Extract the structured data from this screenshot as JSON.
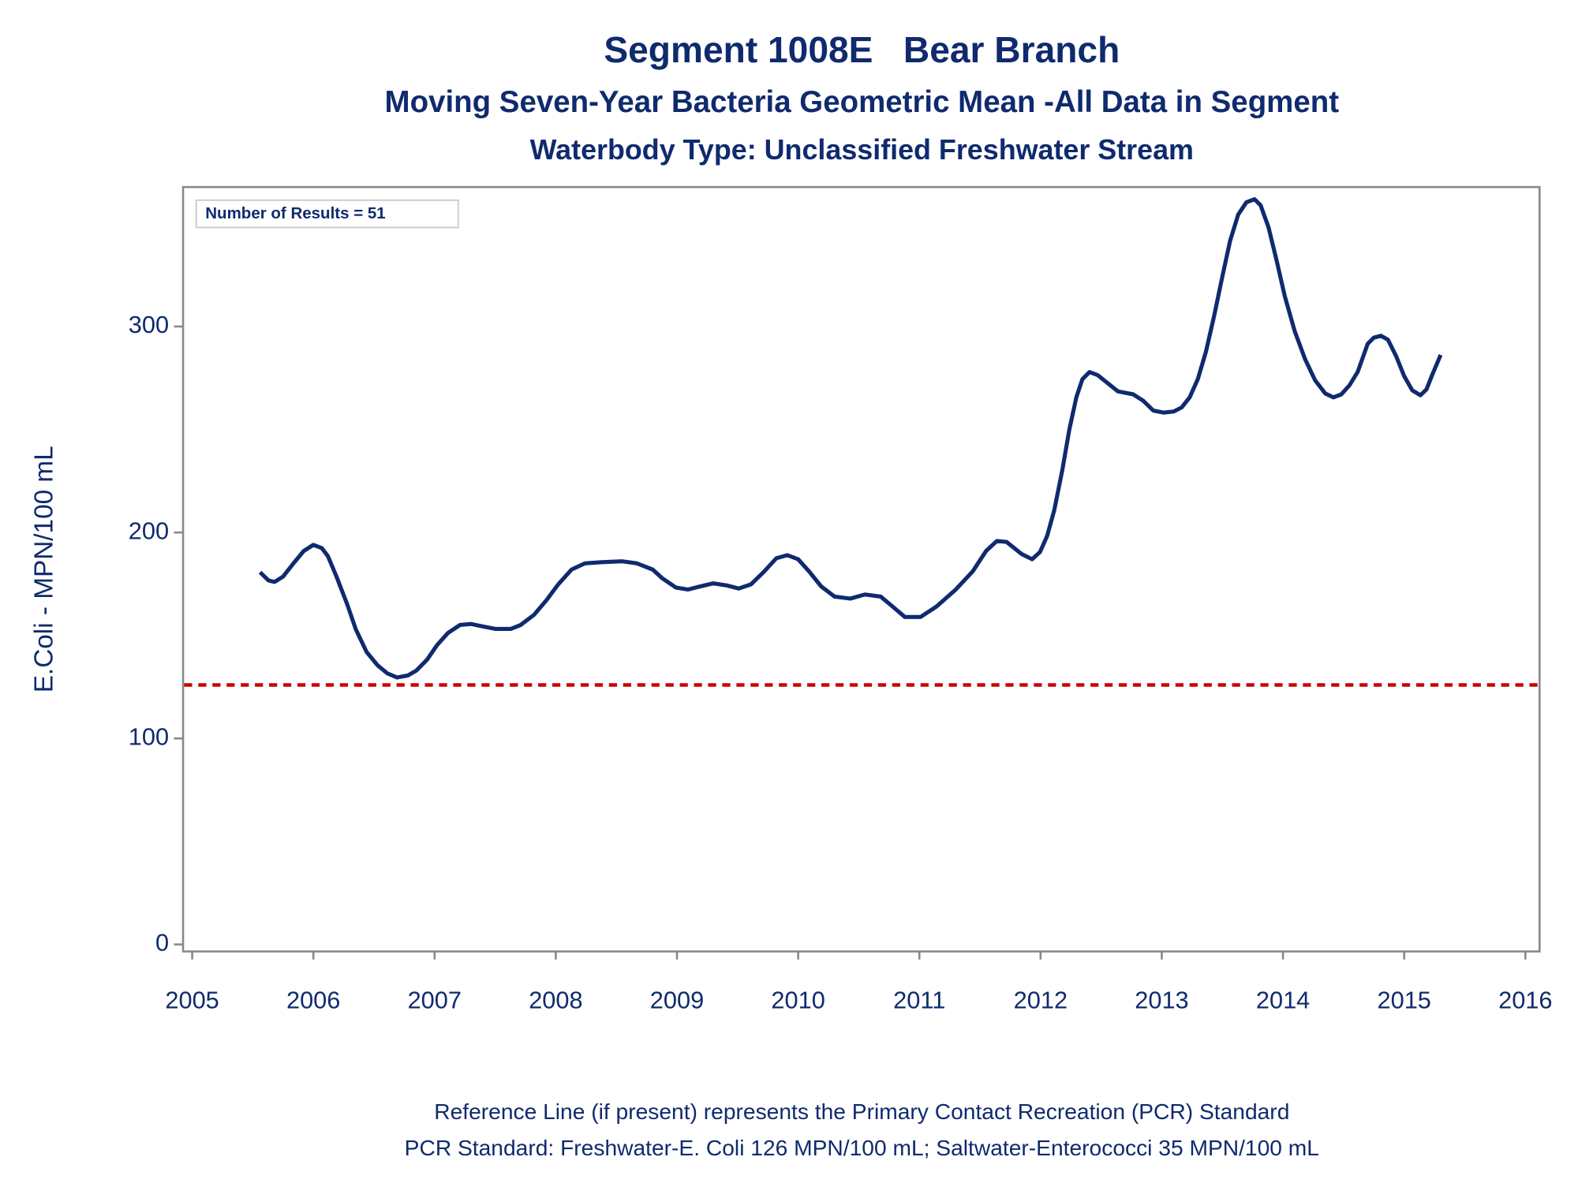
{
  "chart_data": {
    "type": "line",
    "title": "Segment 1008E   Bear Branch",
    "subtitle": "Moving Seven-Year Bacteria Geometric Mean -All Data in Segment",
    "subtitle2": "Waterbody Type: Unclassified Freshwater Stream",
    "ylabel": "E.Coli - MPN/100 mL",
    "annotation": "Number of Results = 51",
    "footnotes": [
      "Reference Line (if present) represents the Primary Contact Recreation (PCR) Standard",
      "PCR Standard: Freshwater-E. Coli 126 MPN/100 mL; Saltwater-Enterococci 35 MPN/100 mL"
    ],
    "color": "#0f2a6e",
    "reference_line": {
      "value": 126,
      "color": "#cc0000"
    },
    "x": [
      2005.56,
      2005.63,
      2005.68,
      2005.75,
      2005.83,
      2005.92,
      2006.0,
      2006.07,
      2006.12,
      2006.19,
      2006.28,
      2006.35,
      2006.44,
      2006.53,
      2006.61,
      2006.69,
      2006.78,
      2006.85,
      2006.94,
      2007.02,
      2007.11,
      2007.21,
      2007.3,
      2007.38,
      2007.5,
      2007.63,
      2007.71,
      2007.82,
      2007.92,
      2008.02,
      2008.13,
      2008.24,
      2008.38,
      2008.55,
      2008.67,
      2008.8,
      2008.88,
      2008.99,
      2009.09,
      2009.19,
      2009.3,
      2009.41,
      2009.51,
      2009.61,
      2009.72,
      2009.82,
      2009.91,
      2010.0,
      2010.09,
      2010.19,
      2010.3,
      2010.43,
      2010.55,
      2010.68,
      2010.78,
      2010.88,
      2011.01,
      2011.14,
      2011.3,
      2011.44,
      2011.55,
      2011.64,
      2011.72,
      2011.845,
      2011.93,
      2011.995,
      2012.054,
      2012.112,
      2012.179,
      2012.237,
      2012.295,
      2012.345,
      2012.404,
      2012.471,
      2012.554,
      2012.638,
      2012.763,
      2012.846,
      2012.93,
      2013.013,
      2013.097,
      2013.164,
      2013.23,
      2013.297,
      2013.364,
      2013.431,
      2013.497,
      2013.564,
      2013.631,
      2013.698,
      2013.765,
      2013.815,
      2013.881,
      2013.948,
      2014.015,
      2014.098,
      2014.182,
      2014.265,
      2014.349,
      2014.416,
      2014.482,
      2014.549,
      2014.616,
      2014.699,
      2014.75,
      2014.808,
      2014.866,
      2014.933,
      2015.0,
      2015.067,
      2015.134,
      2015.184,
      2015.234,
      2015.301
    ],
    "values": [
      180.7,
      176.7,
      176.0,
      178.6,
      184.6,
      191.0,
      194.0,
      192.4,
      188.5,
      178.7,
      165.0,
      153.0,
      141.9,
      135.5,
      131.6,
      129.6,
      130.6,
      133.0,
      138.4,
      145.3,
      151.2,
      155.1,
      155.6,
      154.6,
      153.2,
      153.2,
      155.1,
      160.0,
      166.9,
      174.8,
      182.0,
      185.0,
      185.6,
      186.0,
      185.0,
      182.0,
      177.7,
      173.3,
      172.3,
      173.8,
      175.3,
      174.3,
      172.8,
      174.8,
      181.1,
      187.5,
      189.0,
      187.0,
      181.1,
      173.8,
      168.9,
      167.9,
      169.9,
      168.9,
      164.0,
      159.0,
      159.0,
      164.0,
      172.3,
      181.1,
      191.0,
      195.9,
      195.4,
      189.5,
      187.0,
      190.5,
      198.3,
      210.6,
      230.2,
      249.9,
      265.6,
      274.4,
      277.9,
      276.4,
      272.5,
      268.5,
      267.1,
      264.0,
      259.2,
      258.2,
      258.7,
      260.7,
      265.6,
      274.4,
      287.7,
      304.9,
      323.5,
      341.7,
      354.4,
      360.3,
      361.8,
      358.9,
      348.1,
      331.9,
      314.7,
      297.5,
      284.2,
      273.9,
      267.5,
      265.6,
      267.1,
      271.5,
      277.9,
      291.6,
      294.6,
      295.5,
      293.6,
      285.7,
      275.9,
      269.0,
      266.6,
      269.5,
      276.9,
      286.2
    ],
    "xlim": [
      2004.925,
      2016.117
    ],
    "xticks": [
      2005,
      2006,
      2007,
      2008,
      2009,
      2010,
      2011,
      2012,
      2013,
      2014,
      2015,
      2016
    ],
    "ylim": [
      -3.4,
      367.7
    ],
    "yticks": [
      0,
      100,
      200,
      300
    ]
  }
}
